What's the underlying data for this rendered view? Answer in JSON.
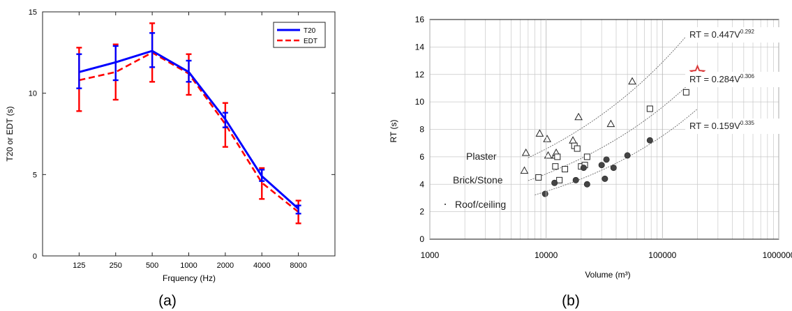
{
  "captions": {
    "a": "(a)",
    "b": "(b)"
  },
  "chart_data": [
    {
      "type": "line",
      "panel": "(a)",
      "title": "",
      "xlabel": "Frquency (Hz)",
      "ylabel": "T20 or EDT (s)",
      "categories": [
        "125",
        "250",
        "500",
        "1000",
        "2000",
        "4000",
        "8000"
      ],
      "ylim": [
        0,
        15
      ],
      "yticks": [
        0,
        5,
        10,
        15
      ],
      "grid": false,
      "legend_position": "top-right",
      "series": [
        {
          "name": "T20",
          "color": "#0000ff",
          "style": "solid",
          "values": [
            11.3,
            11.9,
            12.6,
            11.3,
            8.4,
            4.9,
            2.9
          ],
          "error_low": [
            10.3,
            10.8,
            11.6,
            10.7,
            7.9,
            4.6,
            2.6
          ],
          "error_high": [
            12.4,
            12.9,
            13.7,
            12.0,
            8.8,
            5.3,
            3.1
          ]
        },
        {
          "name": "EDT",
          "color": "#ff0000",
          "style": "dashed",
          "values": [
            10.8,
            11.3,
            12.5,
            11.2,
            8.1,
            4.5,
            2.7
          ],
          "error_low": [
            8.9,
            9.6,
            10.7,
            9.9,
            6.7,
            3.5,
            2.0
          ],
          "error_high": [
            12.8,
            13.0,
            14.3,
            12.4,
            9.4,
            5.4,
            3.4
          ]
        }
      ]
    },
    {
      "type": "scatter",
      "panel": "(b)",
      "title": "",
      "xlabel": "Volume (m³)",
      "ylabel": "RT (s)",
      "xscale": "log",
      "xlim": [
        1000,
        1000000
      ],
      "xticks": [
        "1000",
        "10000",
        "100000",
        "1000000"
      ],
      "ylim": [
        0,
        16
      ],
      "yticks": [
        0,
        2,
        4,
        6,
        8,
        10,
        12,
        14,
        16
      ],
      "grid": true,
      "curves": [
        {
          "a": 0.447,
          "b": 0.292,
          "label_base": "RT = 0.447V",
          "label_exp": "0.292",
          "x_range": [
            7000,
            160000
          ]
        },
        {
          "a": 0.284,
          "b": 0.306,
          "label_base": "RT = 0.284V",
          "label_exp": "0.306",
          "x_range": [
            7000,
            200000
          ]
        },
        {
          "a": 0.159,
          "b": 0.335,
          "label_base": "RT = 0.159V",
          "label_exp": "0.335",
          "x_range": [
            8000,
            200000
          ]
        }
      ],
      "group_labels": [
        "Plaster",
        "Brick/Stone",
        "Roof/ceiling"
      ],
      "series": [
        {
          "marker": "triangle",
          "points": [
            [
              6500,
              5.0
            ],
            [
              6700,
              6.3
            ],
            [
              8800,
              7.7
            ],
            [
              10200,
              7.3
            ],
            [
              10400,
              6.1
            ],
            [
              12000,
              6.1
            ],
            [
              12200,
              6.3
            ],
            [
              17000,
              7.2
            ],
            [
              19000,
              8.9
            ],
            [
              36000,
              8.4
            ],
            [
              55000,
              11.5
            ]
          ]
        },
        {
          "marker": "square",
          "points": [
            [
              8600,
              4.5
            ],
            [
              12000,
              5.3
            ],
            [
              12500,
              6.0
            ],
            [
              13000,
              4.3
            ],
            [
              14500,
              5.1
            ],
            [
              17500,
              6.8
            ],
            [
              18500,
              6.6
            ],
            [
              20000,
              5.3
            ],
            [
              21500,
              5.4
            ],
            [
              22500,
              6.0
            ],
            [
              78000,
              9.5
            ],
            [
              160000,
              10.7
            ]
          ]
        },
        {
          "marker": "circle",
          "points": [
            [
              9800,
              3.3
            ],
            [
              11800,
              4.1
            ],
            [
              18000,
              4.3
            ],
            [
              21000,
              5.2
            ],
            [
              22500,
              4.0
            ],
            [
              30000,
              5.4
            ],
            [
              32000,
              4.4
            ],
            [
              33000,
              5.8
            ],
            [
              38000,
              5.2
            ],
            [
              50000,
              6.1
            ],
            [
              78000,
              7.2
            ]
          ]
        },
        {
          "marker": "star",
          "color": "#d93a3a",
          "points": [
            [
              200000,
              12.1
            ]
          ]
        }
      ]
    }
  ]
}
